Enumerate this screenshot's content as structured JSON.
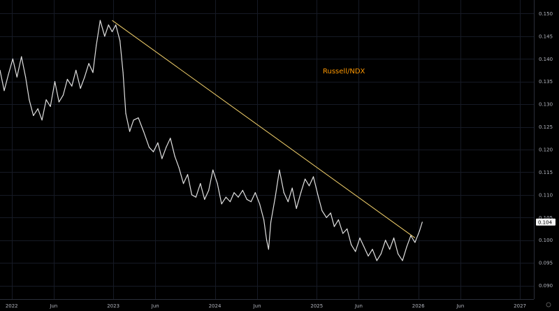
{
  "chart_data": {
    "type": "line",
    "title": "",
    "annotation": "Russell/NDX",
    "last_value_label": "0.104",
    "colors": {
      "background": "#000000",
      "series": "#e0e0e0",
      "trendline": "#f2d06b",
      "annotation": "#ff9800",
      "last_value_bg": "#f5f5f5",
      "axis_text": "#b2b5be"
    },
    "xlim": [
      "2021-11-20",
      "2027-02-20"
    ],
    "ylim": [
      0.087,
      0.153
    ],
    "x_ticks": [
      {
        "date": "2022-01-01",
        "label": "2022"
      },
      {
        "date": "2022-06-01",
        "label": "Jun"
      },
      {
        "date": "2023-01-01",
        "label": "2023"
      },
      {
        "date": "2023-06-01",
        "label": "Jun"
      },
      {
        "date": "2024-01-01",
        "label": "2024"
      },
      {
        "date": "2024-06-01",
        "label": "Jun"
      },
      {
        "date": "2025-01-01",
        "label": "2025"
      },
      {
        "date": "2025-06-01",
        "label": "Jun"
      },
      {
        "date": "2026-01-01",
        "label": "2026"
      },
      {
        "date": "2026-06-01",
        "label": "Jun"
      },
      {
        "date": "2027-01-01",
        "label": "2027"
      }
    ],
    "y_ticks": [
      {
        "value": 0.09,
        "label": "0.090"
      },
      {
        "value": 0.095,
        "label": "0.095"
      },
      {
        "value": 0.1,
        "label": "0.100"
      },
      {
        "value": 0.105,
        "label": "0.105"
      },
      {
        "value": 0.11,
        "label": "0.110"
      },
      {
        "value": 0.115,
        "label": "0.115"
      },
      {
        "value": 0.12,
        "label": "0.120"
      },
      {
        "value": 0.125,
        "label": "0.125"
      },
      {
        "value": 0.13,
        "label": "0.130"
      },
      {
        "value": 0.135,
        "label": "0.135"
      },
      {
        "value": 0.14,
        "label": "0.140"
      },
      {
        "value": 0.145,
        "label": "0.145"
      },
      {
        "value": 0.15,
        "label": "0.150"
      }
    ],
    "trendline": {
      "x": [
        "2022-12-28",
        "2025-12-20"
      ],
      "y": [
        0.1485,
        0.1005
      ]
    },
    "series": [
      {
        "x": [
          "2021-11-20",
          "2021-12-05",
          "2021-12-20",
          "2022-01-05",
          "2022-01-20",
          "2022-02-05",
          "2022-02-20",
          "2022-03-05",
          "2022-03-20",
          "2022-04-05",
          "2022-04-20",
          "2022-05-05",
          "2022-05-20",
          "2022-06-05",
          "2022-06-20",
          "2022-07-05",
          "2022-07-20",
          "2022-08-05",
          "2022-08-20",
          "2022-09-05",
          "2022-09-20",
          "2022-10-05",
          "2022-10-20",
          "2022-11-01",
          "2022-11-15",
          "2022-12-01",
          "2022-12-15",
          "2022-12-28",
          "2023-01-10",
          "2023-01-25",
          "2023-02-05",
          "2023-02-15",
          "2023-03-01",
          "2023-03-15",
          "2023-04-01",
          "2023-04-20",
          "2023-05-10",
          "2023-05-25",
          "2023-06-10",
          "2023-06-25",
          "2023-07-10",
          "2023-07-25",
          "2023-08-10",
          "2023-08-25",
          "2023-09-10",
          "2023-09-25",
          "2023-10-10",
          "2023-10-25",
          "2023-11-10",
          "2023-11-25",
          "2023-12-10",
          "2023-12-25",
          "2024-01-10",
          "2024-01-25",
          "2024-02-10",
          "2024-02-25",
          "2024-03-10",
          "2024-03-25",
          "2024-04-10",
          "2024-04-25",
          "2024-05-10",
          "2024-05-25",
          "2024-06-10",
          "2024-06-25",
          "2024-07-05",
          "2024-07-12",
          "2024-07-20",
          "2024-08-05",
          "2024-08-20",
          "2024-09-05",
          "2024-09-20",
          "2024-10-05",
          "2024-10-20",
          "2024-11-05",
          "2024-11-20",
          "2024-12-05",
          "2024-12-20",
          "2025-01-05",
          "2025-01-20",
          "2025-02-05",
          "2025-02-20",
          "2025-03-05",
          "2025-03-20",
          "2025-04-05",
          "2025-04-20",
          "2025-05-05",
          "2025-05-20",
          "2025-06-05",
          "2025-06-20",
          "2025-07-05",
          "2025-07-20",
          "2025-08-05",
          "2025-08-20",
          "2025-09-05",
          "2025-09-20",
          "2025-10-05",
          "2025-10-20",
          "2025-11-05",
          "2025-11-20",
          "2025-12-05",
          "2025-12-20",
          "2026-01-05",
          "2026-01-15"
        ],
        "y": [
          0.1375,
          0.133,
          0.1365,
          0.14,
          0.136,
          0.1405,
          0.136,
          0.131,
          0.1275,
          0.129,
          0.1265,
          0.131,
          0.1295,
          0.135,
          0.1305,
          0.132,
          0.1355,
          0.134,
          0.1375,
          0.1335,
          0.136,
          0.139,
          0.137,
          0.143,
          0.1485,
          0.145,
          0.1475,
          0.146,
          0.1475,
          0.144,
          0.137,
          0.128,
          0.124,
          0.1265,
          0.127,
          0.124,
          0.1205,
          0.1195,
          0.1215,
          0.118,
          0.1205,
          0.1225,
          0.1185,
          0.116,
          0.1125,
          0.1145,
          0.11,
          0.1095,
          0.1125,
          0.109,
          0.111,
          0.1155,
          0.1125,
          0.108,
          0.1095,
          0.1085,
          0.1105,
          0.1095,
          0.111,
          0.109,
          0.1085,
          0.1105,
          0.108,
          0.1045,
          0.1,
          0.098,
          0.104,
          0.1095,
          0.1155,
          0.1105,
          0.1085,
          0.1115,
          0.107,
          0.1105,
          0.1135,
          0.112,
          0.114,
          0.11,
          0.1065,
          0.105,
          0.106,
          0.103,
          0.1045,
          0.1015,
          0.1025,
          0.099,
          0.0975,
          0.1005,
          0.0985,
          0.0965,
          0.098,
          0.0955,
          0.097,
          0.1,
          0.098,
          0.1005,
          0.097,
          0.0955,
          0.0985,
          0.101,
          0.0995,
          0.102,
          0.104
        ]
      }
    ]
  }
}
